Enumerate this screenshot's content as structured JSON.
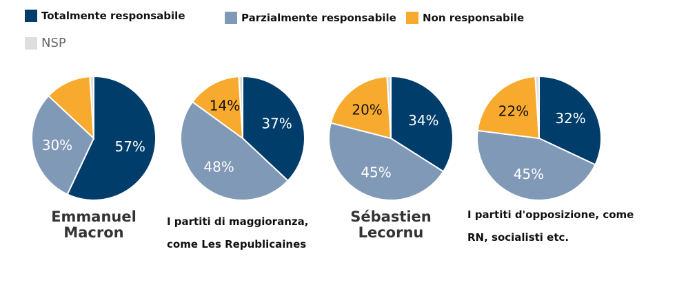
{
  "colors": {
    "totalmente": "#003d6b",
    "parzialmente": "#8099b7",
    "non": "#f8aa2e",
    "nsp": "#dedede"
  },
  "legend": {
    "totalmente": "Totalmente responsabile",
    "parzialmente": "Parzialmente responsabile",
    "non": "Non responsabile",
    "nsp": "NSP"
  },
  "chart_data": [
    {
      "type": "pie",
      "title": "Emmanuel Macron",
      "series": [
        {
          "name": "Totalmente responsabile",
          "value": 57,
          "label": "57%"
        },
        {
          "name": "Parzialmente responsabile",
          "value": 30,
          "label": "30%"
        },
        {
          "name": "Non responsabile",
          "value": 12,
          "label": ""
        },
        {
          "name": "NSP",
          "value": 1,
          "label": ""
        }
      ]
    },
    {
      "type": "pie",
      "title": "I partiti di maggioranza, come Les Republicaines",
      "series": [
        {
          "name": "Totalmente responsabile",
          "value": 37,
          "label": "37%"
        },
        {
          "name": "Parzialmente responsabile",
          "value": 48,
          "label": "48%"
        },
        {
          "name": "Non responsabile",
          "value": 14,
          "label": "14%"
        },
        {
          "name": "NSP",
          "value": 1,
          "label": ""
        }
      ]
    },
    {
      "type": "pie",
      "title": "Sébastien Lecornu",
      "series": [
        {
          "name": "Totalmente responsabile",
          "value": 34,
          "label": "34%"
        },
        {
          "name": "Parzialmente responsabile",
          "value": 45,
          "label": "45%"
        },
        {
          "name": "Non responsabile",
          "value": 20,
          "label": "20%"
        },
        {
          "name": "NSP",
          "value": 1,
          "label": ""
        }
      ]
    },
    {
      "type": "pie",
      "title": "I partiti d'opposizione, come RN, socialisti etc.",
      "series": [
        {
          "name": "Totalmente responsabile",
          "value": 32,
          "label": "32%"
        },
        {
          "name": "Parzialmente responsabile",
          "value": 45,
          "label": "45%"
        },
        {
          "name": "Non responsabile",
          "value": 22,
          "label": "22%"
        },
        {
          "name": "NSP",
          "value": 1,
          "label": ""
        }
      ]
    }
  ],
  "names": {
    "macron": [
      "Emmanuel",
      "Macron"
    ],
    "maggioranza": [
      "I partiti di maggioranza,",
      "come Les Republicaines"
    ],
    "lecornu": [
      "Sébastien",
      "Lecornu"
    ],
    "opposizione": [
      "I partiti d'opposizione, come",
      "RN, socialisti etc."
    ]
  }
}
